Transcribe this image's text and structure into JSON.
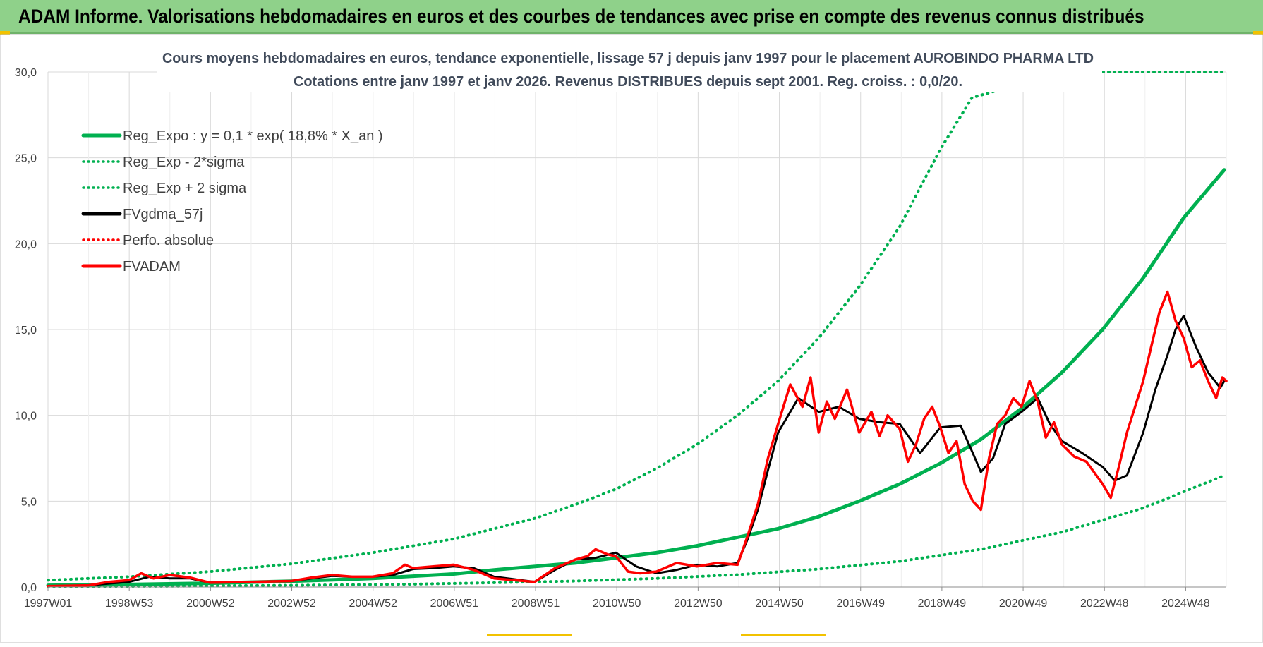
{
  "header": {
    "title": "ADAM Informe. Valorisations hebdomadaires en euros et des courbes de tendances avec prise en compte des revenus connus distribués"
  },
  "colors": {
    "header_bg": "#8fd18a",
    "reg_green": "#00b050",
    "black": "#000000",
    "red": "#ff0000",
    "grid": "#d9d9d9"
  },
  "chart_data": {
    "type": "line",
    "title": "Cours moyens hebdomadaires en euros, tendance exponentielle, lissage 57 j depuis janv 1997  pour le placement AUROBINDO PHARMA LTD",
    "subtitle": "Cotations entre janv 1997 et janv 2026. Revenus DISTRIBUES depuis sept 2001. Reg. croiss. : 0,0/20.",
    "x_tick_labels": [
      "1997W01",
      "1998W53",
      "2000W52",
      "2002W52",
      "2004W52",
      "2006W51",
      "2008W51",
      "2010W50",
      "2012W50",
      "2014W50",
      "2016W49",
      "2018W49",
      "2020W49",
      "2022W48",
      "2024W48"
    ],
    "y_tick_labels": [
      "0,0",
      "5,0",
      "10,0",
      "15,0",
      "20,0",
      "25,0",
      "30,0"
    ],
    "x_range": [
      1997.0,
      2026.05
    ],
    "ylim": [
      0,
      30
    ],
    "grid": true,
    "legend_position": "top-left",
    "legend": [
      {
        "label": "Reg_Expo : y = 0,1 * exp( 18,8% *  X_an )",
        "style": "solid",
        "color": "#00b050"
      },
      {
        "label": "Reg_Exp - 2*sigma",
        "style": "dotted",
        "color": "#00b050"
      },
      {
        "label": "Reg_Exp + 2 sigma",
        "style": "dotted",
        "color": "#00b050"
      },
      {
        "label": "FVgdma_57j",
        "style": "solid",
        "color": "#000000"
      },
      {
        "label": "Perfo. absolue",
        "style": "dotted",
        "color": "#ff0000"
      },
      {
        "label": "FVADAM",
        "style": "solid",
        "color": "#ff0000"
      }
    ],
    "series": [
      {
        "name": "Reg_Expo : y = 0,1 * exp( 18,8% *  X_an )",
        "x": [
          1997.0,
          1999.0,
          2001.0,
          2003.0,
          2005.0,
          2007.0,
          2008.0,
          2010.0,
          2011.0,
          2012.0,
          2013.0,
          2014.0,
          2015.0,
          2016.0,
          2017.0,
          2018.0,
          2019.0,
          2020.0,
          2021.0,
          2022.0,
          2023.0,
          2024.0,
          2025.0,
          2026.0
        ],
        "values": [
          0.1,
          0.15,
          0.22,
          0.34,
          0.5,
          0.76,
          1.0,
          1.4,
          1.7,
          2.0,
          2.4,
          2.9,
          3.4,
          4.1,
          5.0,
          6.0,
          7.2,
          8.6,
          10.4,
          12.5,
          15.0,
          18.0,
          21.5,
          24.3
        ]
      },
      {
        "name": "Reg_Exp - 2*sigma",
        "x": [
          1997.0,
          2000.0,
          2003.0,
          2006.0,
          2008.0,
          2010.0,
          2012.0,
          2014.0,
          2016.0,
          2018.0,
          2020.0,
          2022.0,
          2024.0,
          2026.0
        ],
        "values": [
          0.03,
          0.05,
          0.1,
          0.17,
          0.25,
          0.35,
          0.5,
          0.72,
          1.05,
          1.5,
          2.2,
          3.2,
          4.6,
          6.5
        ]
      },
      {
        "name": "Reg_Exp + 2 sigma",
        "x": [
          1997.0,
          1999.0,
          2001.0,
          2003.0,
          2005.0,
          2007.0,
          2009.0,
          2010.0,
          2011.0,
          2012.0,
          2013.0,
          2014.0,
          2015.0,
          2016.0,
          2017.0,
          2018.0,
          2019.0,
          2019.78,
          2022.0,
          2026.0
        ],
        "values": [
          0.4,
          0.6,
          0.9,
          1.35,
          2.0,
          2.8,
          4.0,
          4.8,
          5.7,
          6.9,
          8.3,
          10.0,
          12.0,
          14.5,
          17.5,
          21.0,
          25.5,
          28.5,
          30.0,
          30.0
        ]
      },
      {
        "name": "FVgdma_57j",
        "x": [
          1997.0,
          1998.0,
          1998.5,
          1999.0,
          1999.5,
          2000.0,
          2000.5,
          2001.0,
          2002.0,
          2003.0,
          2003.5,
          2004.0,
          2004.5,
          2005.0,
          2005.5,
          2006.0,
          2006.5,
          2007.0,
          2007.5,
          2008.0,
          2008.5,
          2009.0,
          2009.5,
          2010.0,
          2010.5,
          2011.0,
          2011.5,
          2012.0,
          2012.5,
          2013.0,
          2013.5,
          2014.0,
          2014.25,
          2014.5,
          2014.75,
          2015.0,
          2015.5,
          2016.0,
          2016.5,
          2017.0,
          2017.5,
          2018.0,
          2018.5,
          2019.0,
          2019.5,
          2019.8,
          2020.0,
          2020.3,
          2020.6,
          2021.0,
          2021.4,
          2021.7,
          2022.0,
          2022.5,
          2023.0,
          2023.3,
          2023.6,
          2024.0,
          2024.3,
          2024.6,
          2024.8,
          2025.0,
          2025.3,
          2025.6,
          2025.9,
          2026.0
        ],
        "values": [
          0.05,
          0.1,
          0.2,
          0.3,
          0.6,
          0.5,
          0.5,
          0.25,
          0.3,
          0.35,
          0.5,
          0.65,
          0.6,
          0.6,
          0.7,
          1.05,
          1.1,
          1.2,
          1.1,
          0.6,
          0.45,
          0.3,
          1.0,
          1.6,
          1.7,
          2.0,
          1.2,
          0.8,
          1.0,
          1.3,
          1.2,
          1.4,
          2.8,
          4.5,
          6.8,
          9.0,
          11.0,
          10.2,
          10.5,
          9.8,
          9.6,
          9.5,
          7.8,
          9.3,
          9.4,
          7.8,
          6.7,
          7.5,
          9.5,
          10.2,
          11.0,
          9.5,
          8.5,
          7.8,
          7.0,
          6.2,
          6.5,
          9.0,
          11.5,
          13.5,
          15.0,
          15.8,
          14.0,
          12.5,
          11.6,
          12.0
        ]
      },
      {
        "name": "FVADAM",
        "x": [
          1997.0,
          1998.0,
          1998.5,
          1999.0,
          1999.3,
          1999.6,
          2000.0,
          2000.5,
          2001.0,
          2002.0,
          2003.0,
          2003.5,
          2004.0,
          2004.5,
          2005.0,
          2005.5,
          2005.8,
          2006.0,
          2006.5,
          2007.0,
          2007.5,
          2008.0,
          2008.5,
          2009.0,
          2009.5,
          2010.0,
          2010.3,
          2010.5,
          2010.8,
          2011.0,
          2011.3,
          2011.6,
          2012.0,
          2012.5,
          2013.0,
          2013.5,
          2014.0,
          2014.25,
          2014.5,
          2014.75,
          2015.0,
          2015.3,
          2015.6,
          2015.8,
          2016.0,
          2016.2,
          2016.4,
          2016.7,
          2017.0,
          2017.3,
          2017.5,
          2017.7,
          2018.0,
          2018.2,
          2018.4,
          2018.6,
          2018.8,
          2019.0,
          2019.2,
          2019.4,
          2019.6,
          2019.8,
          2020.0,
          2020.2,
          2020.4,
          2020.6,
          2020.8,
          2021.0,
          2021.2,
          2021.4,
          2021.6,
          2021.8,
          2022.0,
          2022.3,
          2022.6,
          2023.0,
          2023.2,
          2023.4,
          2023.6,
          2023.8,
          2024.0,
          2024.2,
          2024.4,
          2024.6,
          2024.8,
          2025.0,
          2025.2,
          2025.4,
          2025.6,
          2025.8,
          2025.95,
          2026.05
        ],
        "values": [
          0.05,
          0.1,
          0.3,
          0.4,
          0.8,
          0.5,
          0.7,
          0.55,
          0.25,
          0.3,
          0.35,
          0.55,
          0.7,
          0.6,
          0.6,
          0.8,
          1.3,
          1.1,
          1.2,
          1.3,
          1.0,
          0.5,
          0.4,
          0.3,
          1.1,
          1.6,
          1.8,
          2.2,
          1.9,
          1.8,
          0.9,
          0.8,
          0.9,
          1.4,
          1.2,
          1.4,
          1.3,
          3.0,
          4.8,
          7.5,
          9.5,
          11.8,
          10.5,
          12.2,
          9.0,
          10.8,
          9.8,
          11.5,
          9.0,
          10.2,
          8.8,
          10.0,
          9.2,
          7.3,
          8.3,
          9.8,
          10.5,
          9.3,
          7.8,
          8.5,
          6.0,
          5.0,
          4.5,
          7.5,
          9.5,
          10.0,
          11.0,
          10.5,
          12.0,
          10.8,
          8.7,
          9.6,
          8.3,
          7.6,
          7.3,
          6.0,
          5.2,
          7.0,
          9.0,
          10.5,
          12.0,
          14.0,
          16.0,
          17.2,
          15.5,
          14.5,
          12.8,
          13.2,
          12.0,
          11.0,
          12.2,
          12.0
        ]
      }
    ]
  }
}
